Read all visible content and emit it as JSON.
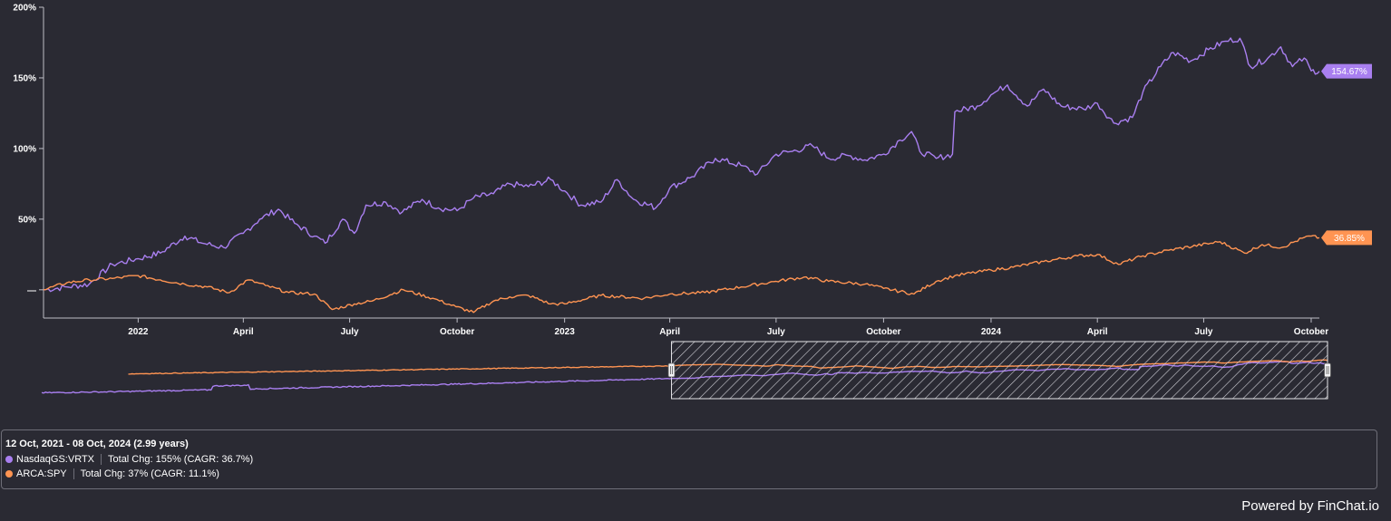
{
  "chart_data": {
    "type": "line",
    "y_ticks": [
      "200%",
      "150%",
      "100%",
      "50%",
      "—"
    ],
    "y_tick_values": [
      200,
      150,
      100,
      50,
      0
    ],
    "ylim": [
      -20,
      200
    ],
    "x_ticks": [
      "2022",
      "April",
      "July",
      "October",
      "2023",
      "April",
      "July",
      "October",
      "2024",
      "April",
      "July",
      "October"
    ],
    "x_tick_dates": [
      "2022-01-01",
      "2022-04-01",
      "2022-07-01",
      "2022-10-01",
      "2023-01-01",
      "2023-04-01",
      "2023-07-01",
      "2023-10-01",
      "2024-01-01",
      "2024-04-01",
      "2024-07-01",
      "2024-10-01"
    ],
    "xlim": [
      "2021-10-12",
      "2024-10-08"
    ],
    "grid": false,
    "series": [
      {
        "name": "NasdaqGS:VRTX",
        "color": "#a97ff0",
        "end_label": "154.67%",
        "points": [
          [
            "2021-10-12",
            0
          ],
          [
            "2021-11-01",
            2
          ],
          [
            "2021-11-20",
            4
          ],
          [
            "2021-12-10",
            18
          ],
          [
            "2022-01-01",
            22
          ],
          [
            "2022-01-20",
            26
          ],
          [
            "2022-02-10",
            38
          ],
          [
            "2022-02-25",
            33
          ],
          [
            "2022-03-15",
            30
          ],
          [
            "2022-04-01",
            40
          ],
          [
            "2022-04-15",
            50
          ],
          [
            "2022-05-01",
            57
          ],
          [
            "2022-05-15",
            47
          ],
          [
            "2022-06-01",
            38
          ],
          [
            "2022-06-10",
            33
          ],
          [
            "2022-06-25",
            50
          ],
          [
            "2022-07-05",
            40
          ],
          [
            "2022-07-15",
            60
          ],
          [
            "2022-08-01",
            62
          ],
          [
            "2022-08-15",
            55
          ],
          [
            "2022-09-01",
            64
          ],
          [
            "2022-09-15",
            58
          ],
          [
            "2022-10-01",
            56
          ],
          [
            "2022-10-15",
            65
          ],
          [
            "2022-11-01",
            68
          ],
          [
            "2022-11-15",
            75
          ],
          [
            "2022-12-01",
            73
          ],
          [
            "2022-12-20",
            78
          ],
          [
            "2023-01-01",
            70
          ],
          [
            "2023-01-15",
            60
          ],
          [
            "2023-02-01",
            62
          ],
          [
            "2023-02-15",
            78
          ],
          [
            "2023-03-01",
            64
          ],
          [
            "2023-03-20",
            58
          ],
          [
            "2023-04-01",
            72
          ],
          [
            "2023-04-20",
            80
          ],
          [
            "2023-05-10",
            93
          ],
          [
            "2023-06-01",
            88
          ],
          [
            "2023-06-15",
            82
          ],
          [
            "2023-07-01",
            96
          ],
          [
            "2023-07-15",
            98
          ],
          [
            "2023-08-01",
            102
          ],
          [
            "2023-08-15",
            93
          ],
          [
            "2023-09-01",
            95
          ],
          [
            "2023-09-15",
            92
          ],
          [
            "2023-10-01",
            96
          ],
          [
            "2023-10-15",
            106
          ],
          [
            "2023-10-25",
            112
          ],
          [
            "2023-11-01",
            98
          ],
          [
            "2023-11-15",
            93
          ],
          [
            "2023-11-29",
            96
          ],
          [
            "2023-12-01",
            126
          ],
          [
            "2023-12-20",
            130
          ],
          [
            "2024-01-01",
            138
          ],
          [
            "2024-01-15",
            145
          ],
          [
            "2024-02-01",
            130
          ],
          [
            "2024-02-15",
            142
          ],
          [
            "2024-03-01",
            130
          ],
          [
            "2024-03-20",
            128
          ],
          [
            "2024-04-01",
            132
          ],
          [
            "2024-04-15",
            118
          ],
          [
            "2024-05-01",
            122
          ],
          [
            "2024-05-10",
            140
          ],
          [
            "2024-05-25",
            158
          ],
          [
            "2024-06-05",
            168
          ],
          [
            "2024-06-20",
            162
          ],
          [
            "2024-07-05",
            170
          ],
          [
            "2024-07-20",
            176
          ],
          [
            "2024-08-01",
            178
          ],
          [
            "2024-08-10",
            158
          ],
          [
            "2024-08-25",
            164
          ],
          [
            "2024-09-05",
            172
          ],
          [
            "2024-09-15",
            158
          ],
          [
            "2024-09-25",
            164
          ],
          [
            "2024-10-01",
            155
          ],
          [
            "2024-10-08",
            154.67
          ]
        ]
      },
      {
        "name": "ARCA:SPY",
        "color": "#ff9452",
        "end_label": "36.85%",
        "points": [
          [
            "2021-10-12",
            0
          ],
          [
            "2021-11-01",
            5
          ],
          [
            "2021-11-20",
            7
          ],
          [
            "2021-12-10",
            8
          ],
          [
            "2022-01-01",
            10
          ],
          [
            "2022-01-20",
            7
          ],
          [
            "2022-02-10",
            4
          ],
          [
            "2022-03-01",
            2
          ],
          [
            "2022-03-20",
            -2
          ],
          [
            "2022-04-05",
            7
          ],
          [
            "2022-04-20",
            3
          ],
          [
            "2022-05-10",
            -2
          ],
          [
            "2022-06-01",
            -3
          ],
          [
            "2022-06-16",
            -14
          ],
          [
            "2022-07-05",
            -10
          ],
          [
            "2022-07-20",
            -8
          ],
          [
            "2022-08-16",
            0
          ],
          [
            "2022-09-10",
            -6
          ],
          [
            "2022-09-30",
            -12
          ],
          [
            "2022-10-15",
            -16
          ],
          [
            "2022-11-01",
            -8
          ],
          [
            "2022-11-15",
            -5
          ],
          [
            "2022-12-01",
            -4
          ],
          [
            "2022-12-20",
            -10
          ],
          [
            "2023-01-01",
            -10
          ],
          [
            "2023-02-01",
            -4
          ],
          [
            "2023-03-10",
            -6
          ],
          [
            "2023-04-01",
            -3
          ],
          [
            "2023-05-01",
            -2
          ],
          [
            "2023-06-01",
            2
          ],
          [
            "2023-07-01",
            6
          ],
          [
            "2023-07-25",
            9
          ],
          [
            "2023-08-15",
            6
          ],
          [
            "2023-09-15",
            4
          ],
          [
            "2023-10-01",
            1
          ],
          [
            "2023-10-27",
            -3
          ],
          [
            "2023-11-15",
            6
          ],
          [
            "2023-12-01",
            10
          ],
          [
            "2024-01-01",
            14
          ],
          [
            "2024-01-20",
            16
          ],
          [
            "2024-02-15",
            20
          ],
          [
            "2024-03-15",
            24
          ],
          [
            "2024-04-01",
            25
          ],
          [
            "2024-04-19",
            18
          ],
          [
            "2024-05-10",
            24
          ],
          [
            "2024-06-01",
            28
          ],
          [
            "2024-07-15",
            34
          ],
          [
            "2024-08-05",
            26
          ],
          [
            "2024-08-20",
            32
          ],
          [
            "2024-09-06",
            30
          ],
          [
            "2024-09-25",
            37
          ],
          [
            "2024-10-01",
            38
          ],
          [
            "2024-10-08",
            36.85
          ]
        ]
      }
    ]
  },
  "navigator": {
    "label": "date range navigator"
  },
  "summary": {
    "range": "12 Oct, 2021 - 08 Oct, 2024 (2.99 years)",
    "rows": [
      {
        "ticker": "NasdaqGS:VRTX",
        "stats": "Total Chg: 155% (CAGR: 36.7%)",
        "color": "#a97ff0"
      },
      {
        "ticker": "ARCA:SPY",
        "stats": "Total Chg: 37% (CAGR: 11.1%)",
        "color": "#ff9452"
      }
    ]
  },
  "footer": {
    "powered_by": "Powered by FinChat.io"
  }
}
